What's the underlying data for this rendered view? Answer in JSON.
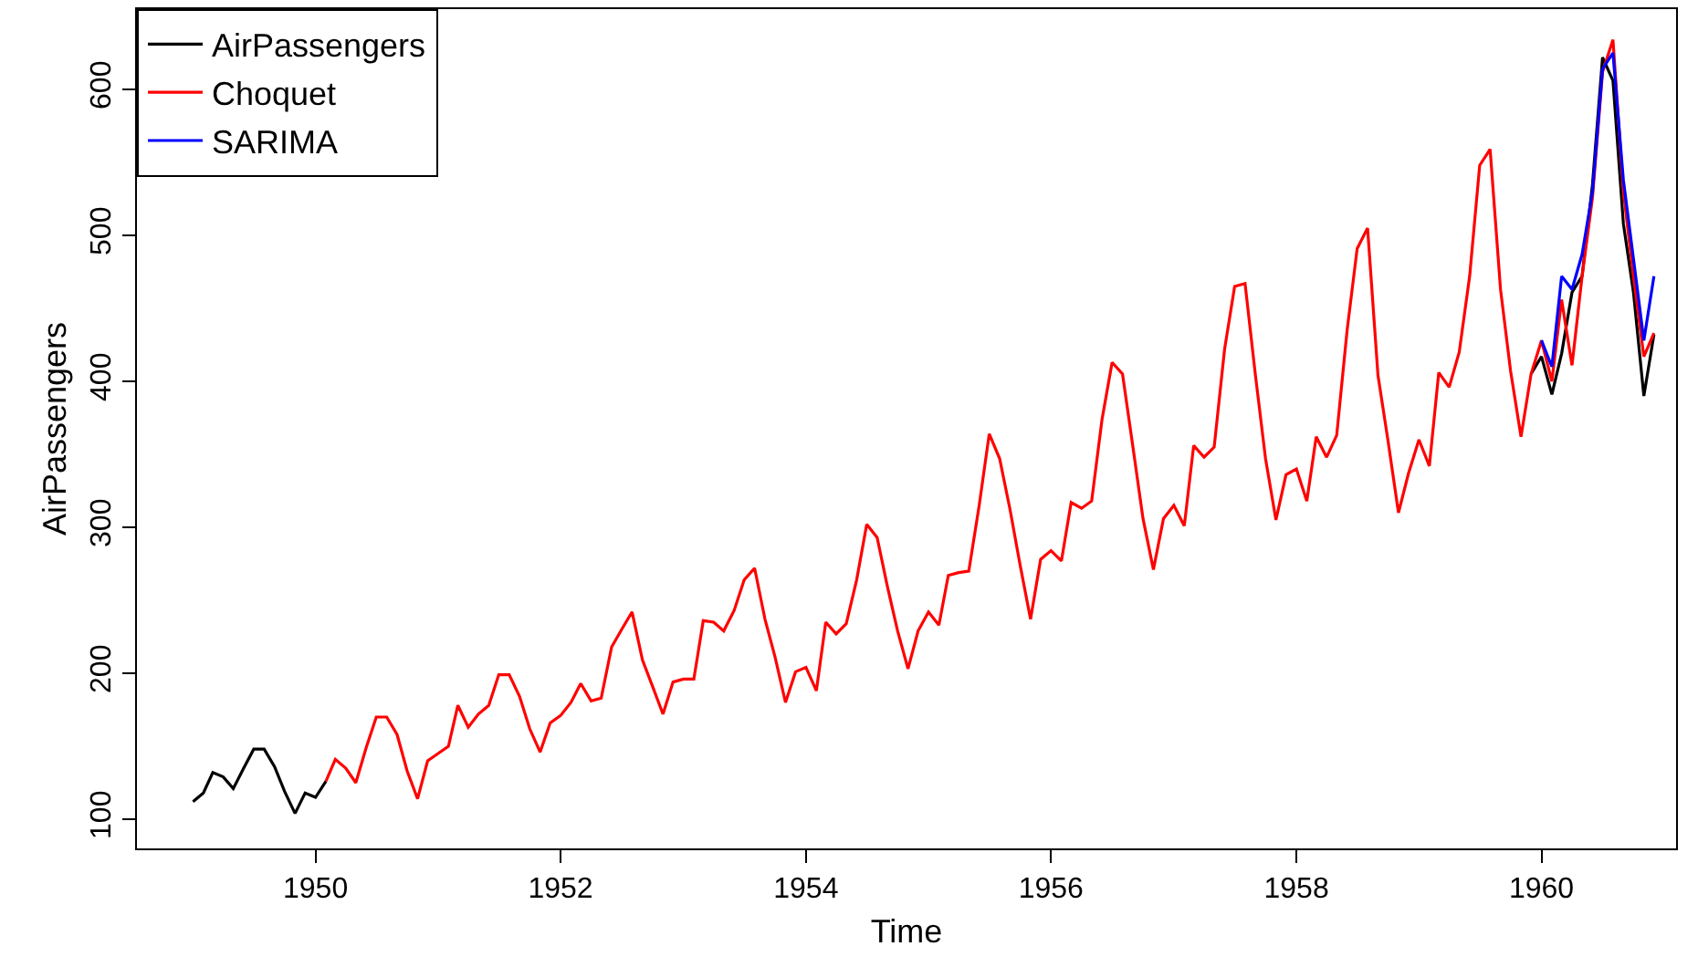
{
  "chart_data": {
    "type": "line",
    "xlabel": "Time",
    "ylabel": "AirPassengers",
    "xlim": [
      "1948-07-18",
      "1961-02-05"
    ],
    "xticks": [
      "1950",
      "1952",
      "1954",
      "1956",
      "1958",
      "1960"
    ],
    "ylim": [
      80,
      655
    ],
    "yticks": [
      100,
      200,
      300,
      400,
      500,
      600
    ],
    "grid": false,
    "legend": "top left",
    "marker": "none",
    "line_style": "solid",
    "series": [
      {
        "name": "AirPassengers",
        "color": "#000000",
        "x": [
          "1949-01",
          "1949-02",
          "1949-03",
          "1949-04",
          "1949-05",
          "1949-06",
          "1949-07",
          "1949-08",
          "1949-09",
          "1949-10",
          "1949-11",
          "1949-12",
          "1950-01",
          "1950-02",
          "1950-03",
          "1950-04",
          "1950-05",
          "1950-06",
          "1950-07",
          "1950-08",
          "1950-09",
          "1950-10",
          "1950-11",
          "1950-12",
          "1951-01",
          "1951-02",
          "1951-03",
          "1951-04",
          "1951-05",
          "1951-06",
          "1951-07",
          "1951-08",
          "1951-09",
          "1951-10",
          "1951-11",
          "1951-12",
          "1952-01",
          "1952-02",
          "1952-03",
          "1952-04",
          "1952-05",
          "1952-06",
          "1952-07",
          "1952-08",
          "1952-09",
          "1952-10",
          "1952-11",
          "1952-12",
          "1953-01",
          "1953-02",
          "1953-03",
          "1953-04",
          "1953-05",
          "1953-06",
          "1953-07",
          "1953-08",
          "1953-09",
          "1953-10",
          "1953-11",
          "1953-12",
          "1954-01",
          "1954-02",
          "1954-03",
          "1954-04",
          "1954-05",
          "1954-06",
          "1954-07",
          "1954-08",
          "1954-09",
          "1954-10",
          "1954-11",
          "1954-12",
          "1955-01",
          "1955-02",
          "1955-03",
          "1955-04",
          "1955-05",
          "1955-06",
          "1955-07",
          "1955-08",
          "1955-09",
          "1955-10",
          "1955-11",
          "1955-12",
          "1956-01",
          "1956-02",
          "1956-03",
          "1956-04",
          "1956-05",
          "1956-06",
          "1956-07",
          "1956-08",
          "1956-09",
          "1956-10",
          "1956-11",
          "1956-12",
          "1957-01",
          "1957-02",
          "1957-03",
          "1957-04",
          "1957-05",
          "1957-06",
          "1957-07",
          "1957-08",
          "1957-09",
          "1957-10",
          "1957-11",
          "1957-12",
          "1958-01",
          "1958-02",
          "1958-03",
          "1958-04",
          "1958-05",
          "1958-06",
          "1958-07",
          "1958-08",
          "1958-09",
          "1958-10",
          "1958-11",
          "1958-12",
          "1959-01",
          "1959-02",
          "1959-03",
          "1959-04",
          "1959-05",
          "1959-06",
          "1959-07",
          "1959-08",
          "1959-09",
          "1959-10",
          "1959-11",
          "1959-12",
          "1960-01",
          "1960-02",
          "1960-03",
          "1960-04",
          "1960-05",
          "1960-06",
          "1960-07",
          "1960-08",
          "1960-09",
          "1960-10",
          "1960-11",
          "1960-12"
        ],
        "values": [
          112,
          118,
          132,
          129,
          121,
          135,
          148,
          148,
          136,
          119,
          104,
          118,
          115,
          126,
          null,
          null,
          null,
          null,
          null,
          null,
          null,
          null,
          null,
          null,
          null,
          null,
          null,
          null,
          null,
          null,
          null,
          null,
          null,
          null,
          null,
          null,
          null,
          null,
          null,
          null,
          null,
          null,
          null,
          null,
          null,
          null,
          null,
          null,
          null,
          null,
          null,
          null,
          null,
          null,
          null,
          null,
          null,
          null,
          null,
          null,
          null,
          null,
          null,
          null,
          null,
          null,
          null,
          null,
          null,
          null,
          null,
          null,
          null,
          null,
          null,
          null,
          null,
          null,
          null,
          null,
          null,
          null,
          null,
          null,
          null,
          null,
          null,
          null,
          null,
          null,
          null,
          null,
          null,
          null,
          null,
          null,
          null,
          null,
          null,
          null,
          null,
          null,
          null,
          null,
          null,
          null,
          null,
          null,
          null,
          null,
          null,
          null,
          null,
          null,
          null,
          null,
          null,
          null,
          null,
          null,
          null,
          null,
          null,
          null,
          null,
          null,
          null,
          null,
          null,
          null,
          null,
          405,
          417,
          391,
          419,
          461,
          472,
          535,
          622,
          606,
          508,
          461,
          390,
          432
        ]
      },
      {
        "name": "Choquet",
        "color": "#ff0000",
        "x": [
          "1950-02",
          "1950-03",
          "1950-04",
          "1950-05",
          "1950-06",
          "1950-07",
          "1950-08",
          "1950-09",
          "1950-10",
          "1950-11",
          "1950-12",
          "1951-01",
          "1951-02",
          "1951-03",
          "1951-04",
          "1951-05",
          "1951-06",
          "1951-07",
          "1951-08",
          "1951-09",
          "1951-10",
          "1951-11",
          "1951-12",
          "1952-01",
          "1952-02",
          "1952-03",
          "1952-04",
          "1952-05",
          "1952-06",
          "1952-07",
          "1952-08",
          "1952-09",
          "1952-10",
          "1952-11",
          "1952-12",
          "1953-01",
          "1953-02",
          "1953-03",
          "1953-04",
          "1953-05",
          "1953-06",
          "1953-07",
          "1953-08",
          "1953-09",
          "1953-10",
          "1953-11",
          "1953-12",
          "1954-01",
          "1954-02",
          "1954-03",
          "1954-04",
          "1954-05",
          "1954-06",
          "1954-07",
          "1954-08",
          "1954-09",
          "1954-10",
          "1954-11",
          "1954-12",
          "1955-01",
          "1955-02",
          "1955-03",
          "1955-04",
          "1955-05",
          "1955-06",
          "1955-07",
          "1955-08",
          "1955-09",
          "1955-10",
          "1955-11",
          "1955-12",
          "1956-01",
          "1956-02",
          "1956-03",
          "1956-04",
          "1956-05",
          "1956-06",
          "1956-07",
          "1956-08",
          "1956-09",
          "1956-10",
          "1956-11",
          "1956-12",
          "1957-01",
          "1957-02",
          "1957-03",
          "1957-04",
          "1957-05",
          "1957-06",
          "1957-07",
          "1957-08",
          "1957-09",
          "1957-10",
          "1957-11",
          "1957-12",
          "1958-01",
          "1958-02",
          "1958-03",
          "1958-04",
          "1958-05",
          "1958-06",
          "1958-07",
          "1958-08",
          "1958-09",
          "1958-10",
          "1958-11",
          "1958-12",
          "1959-01",
          "1959-02",
          "1959-03",
          "1959-04",
          "1959-05",
          "1959-06",
          "1959-07",
          "1959-08",
          "1959-09",
          "1959-10",
          "1959-11",
          "1959-12",
          "1960-01",
          "1960-02",
          "1960-03",
          "1960-04",
          "1960-05",
          "1960-06",
          "1960-07",
          "1960-08",
          "1960-09",
          "1960-10",
          "1960-11",
          "1960-12"
        ],
        "values": [
          126,
          141,
          135,
          125,
          149,
          170,
          170,
          158,
          133,
          114,
          140,
          145,
          150,
          178,
          163,
          172,
          178,
          199,
          199,
          184,
          162,
          146,
          166,
          171,
          180,
          193,
          181,
          183,
          218,
          230,
          242,
          209,
          191,
          172,
          194,
          196,
          196,
          236,
          235,
          229,
          243,
          264,
          272,
          237,
          211,
          180,
          201,
          204,
          188,
          235,
          227,
          234,
          264,
          302,
          293,
          259,
          229,
          203,
          229,
          242,
          233,
          267,
          269,
          270,
          315,
          364,
          347,
          312,
          274,
          237,
          278,
          284,
          277,
          317,
          313,
          318,
          374,
          413,
          405,
          355,
          306,
          271,
          306,
          315,
          301,
          356,
          348,
          355,
          422,
          465,
          467,
          404,
          347,
          305,
          336,
          340,
          318,
          362,
          348,
          363,
          435,
          491,
          505,
          404,
          359,
          310,
          337,
          360,
          342,
          406,
          396,
          420,
          472,
          548,
          559,
          463,
          407,
          362,
          405,
          428,
          400,
          456,
          411,
          472,
          526,
          612,
          634,
          530,
          472,
          417,
          433
        ]
      },
      {
        "name": "SARIMA",
        "color": "#0000ff",
        "x": [
          "1960-01",
          "1960-02",
          "1960-03",
          "1960-04",
          "1960-05",
          "1960-06",
          "1960-07",
          "1960-08",
          "1960-09",
          "1960-10",
          "1960-11",
          "1960-12"
        ],
        "values": [
          428,
          410,
          472,
          463,
          487,
          530,
          614,
          625,
          538,
          484,
          428,
          472
        ]
      }
    ]
  }
}
